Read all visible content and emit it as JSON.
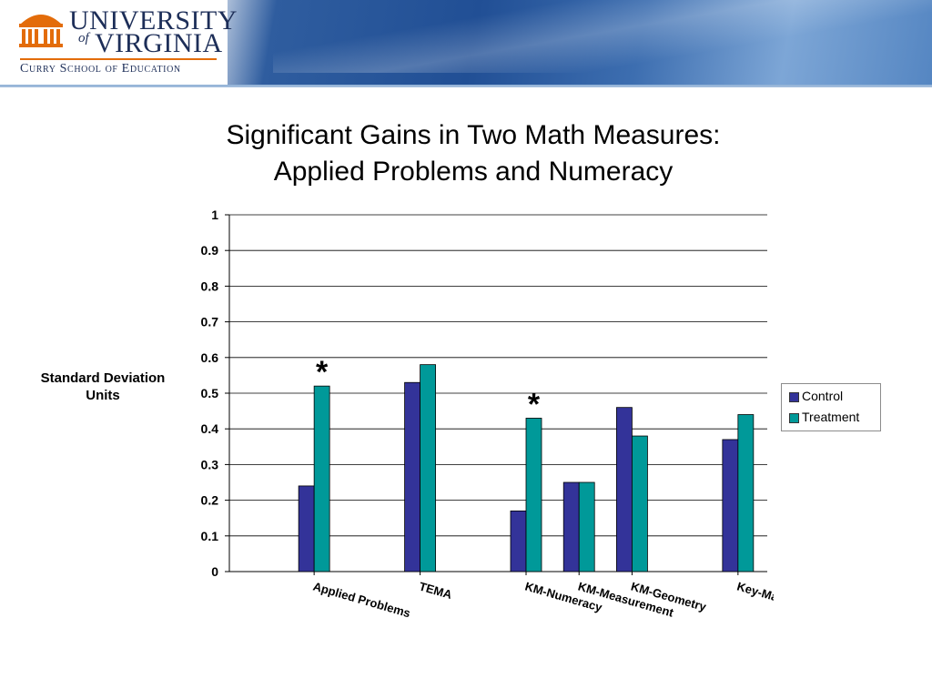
{
  "header": {
    "wordmark_line1": "UNIVERSITY",
    "wordmark_of": "of",
    "wordmark_line2": "VIRGINIA",
    "school_name": "Curry School of Education",
    "logo_orange": "#e36c0a",
    "logo_navy": "#1d2e58"
  },
  "slide": {
    "title_line1": "Significant Gains in Two Math Measures:",
    "title_line2": "Applied Problems and Numeracy"
  },
  "chart_data": {
    "type": "bar",
    "ylabel": "Standard Deviation Units",
    "ylim": [
      0,
      1
    ],
    "yticks": [
      "0",
      "0.1",
      "0.2",
      "0.3",
      "0.4",
      "0.5",
      "0.6",
      "0.7",
      "0.8",
      "0.9",
      "1"
    ],
    "grid": true,
    "legend_position": "right",
    "categories": [
      "Applied Problems",
      "TEMA",
      "KM-Numeracy",
      "KM-Measurement",
      "KM-Geometry",
      "Key-Math Composite"
    ],
    "series": [
      {
        "name": "Control",
        "color": "#333399",
        "values": [
          0.24,
          0.53,
          0.17,
          0.25,
          0.46,
          0.37
        ]
      },
      {
        "name": "Treatment",
        "color": "#009999",
        "values": [
          0.52,
          0.58,
          0.43,
          0.25,
          0.38,
          0.44
        ]
      }
    ],
    "significance_marker": "*",
    "significant_categories": [
      "Applied Problems",
      "KM-Numeracy"
    ]
  }
}
